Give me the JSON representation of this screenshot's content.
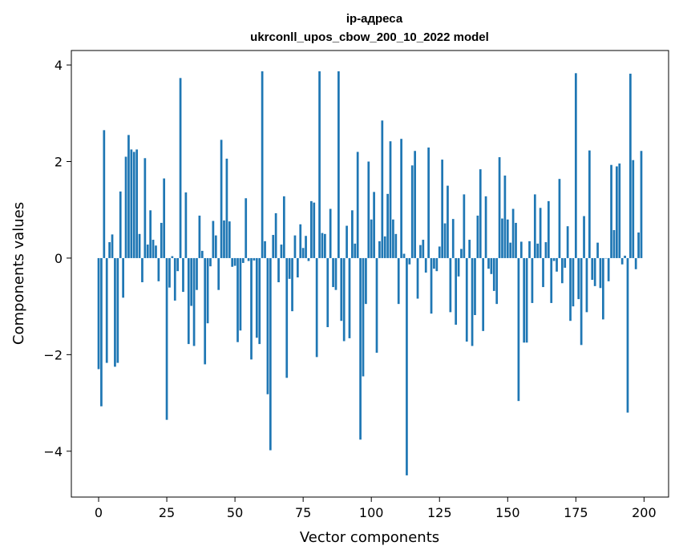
{
  "chart_data": {
    "type": "bar",
    "title_line1": "ip-адреса",
    "title_line2": "ukrconll_upos_cbow_200_10_2022 model",
    "xlabel": "Vector components",
    "ylabel": "Components values",
    "xlim": [
      -10,
      209
    ],
    "ylim": [
      -4.95,
      4.3
    ],
    "xticks": [
      0,
      25,
      50,
      75,
      100,
      125,
      150,
      175,
      200
    ],
    "xtick_labels": [
      "0",
      "25",
      "50",
      "75",
      "100",
      "125",
      "150",
      "175",
      "200"
    ],
    "yticks": [
      4,
      2,
      0,
      -2,
      -4
    ],
    "ytick_labels": [
      "4",
      "2",
      "0",
      "−2",
      "−4"
    ],
    "bar_color": "#1f77b4",
    "grid": false,
    "values": [
      -2.3,
      -3.07,
      2.65,
      -2.17,
      0.33,
      0.49,
      -2.25,
      -2.17,
      1.38,
      -0.82,
      2.1,
      2.55,
      2.25,
      2.2,
      2.25,
      0.5,
      -0.5,
      2.07,
      0.28,
      0.99,
      0.38,
      0.26,
      -0.48,
      0.73,
      1.65,
      -3.35,
      -0.61,
      0.04,
      -0.88,
      -0.27,
      3.73,
      -0.7,
      1.36,
      -1.78,
      -0.99,
      -1.82,
      -0.66,
      0.88,
      0.15,
      -2.2,
      -1.35,
      -0.17,
      0.77,
      0.47,
      -0.66,
      2.45,
      0.78,
      2.06,
      0.76,
      -0.18,
      -0.16,
      -1.74,
      -1.5,
      -0.1,
      1.24,
      -0.06,
      -2.1,
      -0.05,
      -1.65,
      -1.78,
      3.87,
      0.35,
      -2.82,
      -3.98,
      0.48,
      0.93,
      -0.5,
      0.28,
      1.28,
      -2.48,
      -0.43,
      -1.1,
      0.47,
      -0.4,
      0.7,
      0.21,
      0.46,
      -0.06,
      1.18,
      1.15,
      -2.05,
      3.87,
      0.52,
      0.5,
      -1.43,
      1.02,
      -0.6,
      -0.66,
      3.87,
      -1.3,
      -1.72,
      0.67,
      -1.66,
      0.99,
      0.3,
      2.2,
      -3.76,
      -2.45,
      -0.95,
      2.0,
      0.8,
      1.37,
      -1.96,
      0.35,
      2.85,
      0.45,
      1.33,
      2.42,
      0.8,
      0.5,
      -0.95,
      2.47,
      0.09,
      -4.5,
      -0.13,
      1.92,
      2.22,
      -0.84,
      0.27,
      0.38,
      -0.3,
      2.29,
      -1.15,
      -0.22,
      -0.27,
      0.24,
      2.04,
      0.72,
      1.5,
      -1.12,
      0.81,
      -1.38,
      -0.38,
      0.19,
      1.32,
      -1.73,
      0.38,
      -1.82,
      -1.18,
      0.88,
      1.84,
      -1.51,
      1.28,
      -0.22,
      -0.33,
      -0.68,
      -0.95,
      2.09,
      0.82,
      1.71,
      0.8,
      0.32,
      1.02,
      0.73,
      -2.96,
      0.34,
      -1.75,
      -1.75,
      0.35,
      -0.93,
      1.32,
      0.3,
      1.04,
      -0.6,
      0.33,
      1.18,
      -0.93,
      -0.06,
      -0.28,
      1.64,
      -0.52,
      -0.2,
      0.66,
      -1.3,
      -1.0,
      3.83,
      -0.85,
      -1.8,
      0.87,
      -1.12,
      2.23,
      -0.45,
      -0.58,
      0.32,
      -0.62,
      -1.27,
      0.0,
      -0.48,
      1.93,
      0.58,
      1.9,
      1.96,
      -0.13,
      0.05,
      -3.2,
      3.82,
      2.03,
      -0.23,
      0.53,
      2.22
    ]
  }
}
